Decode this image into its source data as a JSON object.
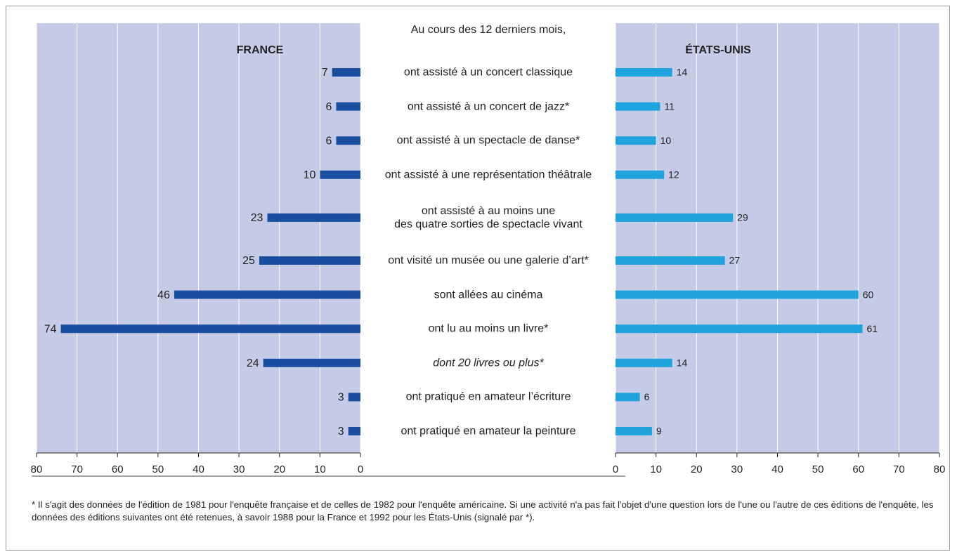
{
  "chart_data": {
    "type": "bar",
    "title": "Au cours des 12 derniers mois,",
    "categories": [
      "ont assisté à un concert classique",
      "ont assisté à un concert de jazz*",
      "ont assisté à un spectacle de danse*",
      "ont assisté à une représentation théâtrale",
      "ont assisté à au moins une\ndes quatre sorties de spectacle vivant",
      "ont visité un musée ou une galerie d’art*",
      "sont allées au cinéma",
      "ont lu au moins un livre*",
      "dont 20 livres ou plus*",
      "ont pratiqué en amateur l’écriture",
      "ont pratiqué en amateur la peinture"
    ],
    "category_styles": [
      "normal",
      "normal",
      "normal",
      "normal",
      "normal",
      "normal",
      "normal",
      "normal",
      "italic",
      "normal",
      "normal"
    ],
    "series": [
      {
        "name": "FRANCE",
        "color": "#1a4fa0",
        "values": [
          7,
          6,
          6,
          10,
          23,
          25,
          46,
          74,
          24,
          3,
          3
        ]
      },
      {
        "name": "ÉTATS-UNIS",
        "color": "#1ea3dc",
        "values": [
          14,
          11,
          10,
          12,
          29,
          27,
          60,
          61,
          14,
          6,
          9
        ]
      }
    ],
    "xlim": [
      0,
      80
    ],
    "xticks": [
      0,
      10,
      20,
      30,
      40,
      50,
      60,
      70,
      80
    ],
    "grid": true,
    "note": "* Il s'agit des données de l'édition de 1981 pour l'enquête française et de celles de 1982 pour l'enquête américaine. Si une activité n'a pas fait l'objet d'une question lors de l'une ou l'autre de ces éditions de l'enquête, les données des éditions suivantes ont été retenues, à savoir 1988 pour la France et 1992 pour les États-Unis (signalé par *)."
  }
}
